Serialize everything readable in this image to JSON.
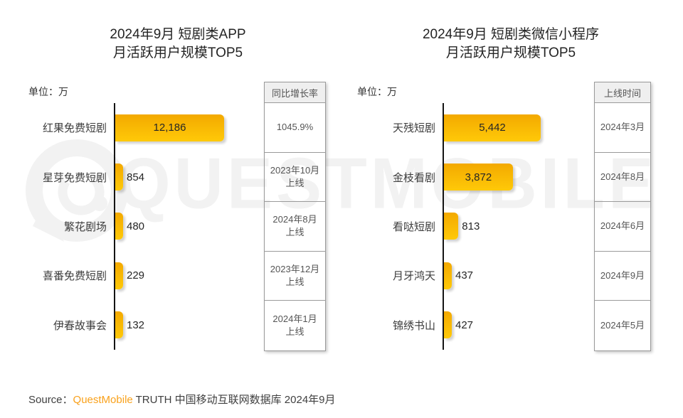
{
  "watermark": {
    "text": "QUESTMOBILE"
  },
  "footer": {
    "prefix": "Source：",
    "brand": "QuestMobile",
    "suffix": " TRUTH 中国移动互联网数据库 2024年9月"
  },
  "colors": {
    "bar_gradient_top": "#F3A900",
    "bar_gradient_bottom": "#FFC908",
    "brand_orange": "#F9A11B",
    "axis_line": "#141414",
    "box_border": "#9a9a9a",
    "box_header_bg": "#efefef"
  },
  "chart_data": [
    {
      "type": "bar",
      "orientation": "horizontal",
      "title_lines": [
        "2024年9月 短剧类APP",
        "月活跃用户规模TOP5"
      ],
      "unit_label": "单位：万",
      "categories": [
        "红果免费短剧",
        "星芽免费短剧",
        "繁花剧场",
        "喜番免费短剧",
        "伊春故事会"
      ],
      "values": [
        12186,
        854,
        480,
        229,
        132
      ],
      "value_labels": [
        "12,186",
        "854",
        "480",
        "229",
        "132"
      ],
      "xlim": [
        0,
        12186
      ],
      "legend": "none",
      "grid": false,
      "annotation_column": {
        "header": "同比增长率",
        "cells": [
          "1045.9%",
          "2023年10月\n上线",
          "2024年8月\n上线",
          "2023年12月\n上线",
          "2024年1月\n上线"
        ]
      }
    },
    {
      "type": "bar",
      "orientation": "horizontal",
      "title_lines": [
        "2024年9月 短剧类微信小程序",
        "月活跃用户规模TOP5"
      ],
      "unit_label": "单位：万",
      "categories": [
        "天残短剧",
        "金枝看剧",
        "看哒短剧",
        "月牙鸿天",
        "锦绣书山"
      ],
      "values": [
        5442,
        3872,
        813,
        437,
        427
      ],
      "value_labels": [
        "5,442",
        "3,872",
        "813",
        "437",
        "427"
      ],
      "xlim": [
        0,
        5442
      ],
      "legend": "none",
      "grid": false,
      "annotation_column": {
        "header": "上线时间",
        "cells": [
          "2024年3月",
          "2024年8月",
          "2024年6月",
          "2024年9月",
          "2024年5月"
        ]
      }
    }
  ]
}
